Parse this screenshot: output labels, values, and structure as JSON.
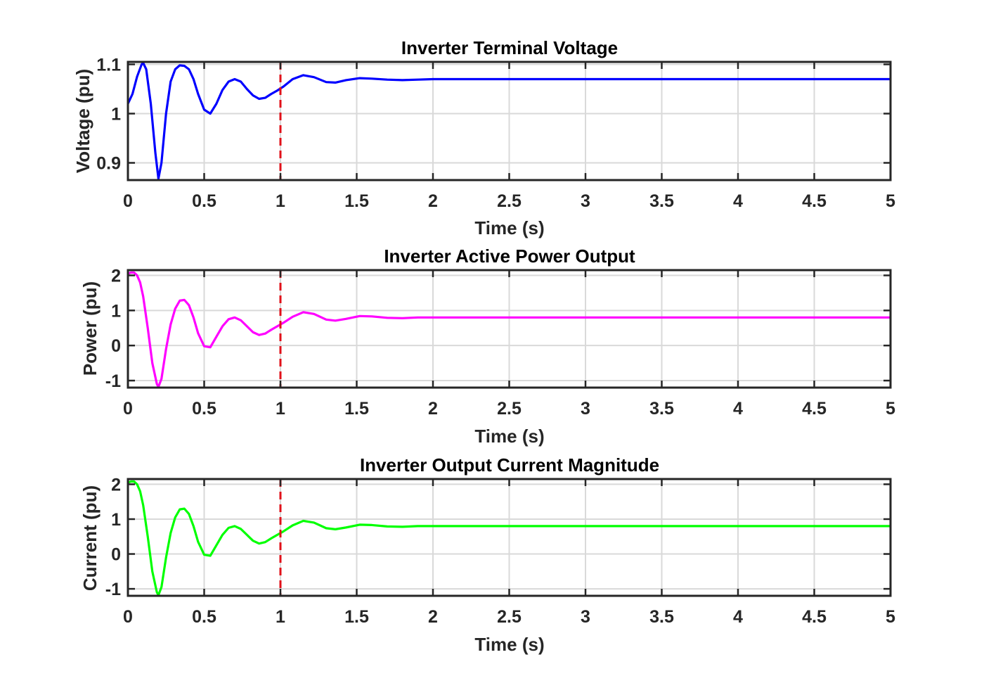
{
  "chart_data": [
    {
      "type": "line",
      "title": "Inverter Terminal Voltage",
      "xlabel": "Time (s)",
      "ylabel": "Voltage (pu)",
      "xlim": [
        0,
        5
      ],
      "ylim": [
        0.865,
        1.105
      ],
      "xticks": [
        0,
        0.5,
        1,
        1.5,
        2,
        2.5,
        3,
        3.5,
        4,
        4.5,
        5
      ],
      "xtick_labels": [
        "0",
        "0.5",
        "1",
        "1.5",
        "2",
        "2.5",
        "3",
        "3.5",
        "4",
        "4.5",
        "5"
      ],
      "yticks": [
        0.9,
        1.0,
        1.1
      ],
      "ytick_labels": [
        "0.9",
        "1",
        "1.1"
      ],
      "grid": true,
      "event_line": {
        "x": 1,
        "color": "#e0101a",
        "style": "dashed"
      },
      "series": [
        {
          "color": "#0000ff",
          "x": [
            0,
            0.03,
            0.06,
            0.09,
            0.1,
            0.12,
            0.15,
            0.18,
            0.2,
            0.22,
            0.25,
            0.28,
            0.31,
            0.34,
            0.37,
            0.4,
            0.43,
            0.46,
            0.5,
            0.54,
            0.58,
            0.62,
            0.66,
            0.7,
            0.74,
            0.78,
            0.82,
            0.86,
            0.9,
            0.94,
            0.98,
            1.02,
            1.08,
            1.15,
            1.22,
            1.3,
            1.36,
            1.43,
            1.52,
            1.6,
            1.7,
            1.8,
            1.9,
            2.0,
            2.2,
            2.5,
            3.0,
            3.5,
            4.0,
            4.5,
            5.0
          ],
          "y": [
            1.02,
            1.04,
            1.075,
            1.1,
            1.103,
            1.09,
            1.02,
            0.92,
            0.868,
            0.9,
            1.0,
            1.065,
            1.09,
            1.098,
            1.097,
            1.09,
            1.07,
            1.04,
            1.008,
            1.0,
            1.02,
            1.048,
            1.065,
            1.07,
            1.065,
            1.05,
            1.037,
            1.03,
            1.032,
            1.04,
            1.047,
            1.055,
            1.07,
            1.078,
            1.074,
            1.064,
            1.063,
            1.068,
            1.072,
            1.071,
            1.069,
            1.068,
            1.069,
            1.07,
            1.07,
            1.07,
            1.07,
            1.07,
            1.07,
            1.07,
            1.07
          ]
        }
      ]
    },
    {
      "type": "line",
      "title": "Inverter Active Power Output",
      "xlabel": "Time (s)",
      "ylabel": "Power (pu)",
      "xlim": [
        0,
        5
      ],
      "ylim": [
        -1.2,
        2.15
      ],
      "xticks": [
        0,
        0.5,
        1,
        1.5,
        2,
        2.5,
        3,
        3.5,
        4,
        4.5,
        5
      ],
      "xtick_labels": [
        "0",
        "0.5",
        "1",
        "1.5",
        "2",
        "2.5",
        "3",
        "3.5",
        "4",
        "4.5",
        "5"
      ],
      "yticks": [
        -1,
        0,
        1,
        2
      ],
      "ytick_labels": [
        "-1",
        "0",
        "1",
        "2"
      ],
      "grid": true,
      "event_line": {
        "x": 1,
        "color": "#e0101a",
        "style": "dashed"
      },
      "series": [
        {
          "color": "#ff00ff",
          "x": [
            0,
            0.02,
            0.04,
            0.06,
            0.08,
            0.1,
            0.13,
            0.16,
            0.19,
            0.2,
            0.22,
            0.25,
            0.28,
            0.31,
            0.34,
            0.37,
            0.4,
            0.43,
            0.46,
            0.5,
            0.54,
            0.58,
            0.62,
            0.66,
            0.7,
            0.74,
            0.78,
            0.82,
            0.86,
            0.9,
            0.94,
            0.98,
            1.02,
            1.08,
            1.15,
            1.22,
            1.3,
            1.36,
            1.43,
            1.52,
            1.6,
            1.7,
            1.8,
            1.9,
            2.0,
            2.2,
            2.5,
            3.0,
            3.5,
            4.0,
            4.5,
            5.0
          ],
          "y": [
            2.05,
            2.08,
            2.08,
            2.0,
            1.8,
            1.4,
            0.5,
            -0.5,
            -1.1,
            -1.18,
            -0.95,
            -0.1,
            0.6,
            1.05,
            1.28,
            1.3,
            1.15,
            0.8,
            0.35,
            -0.02,
            -0.05,
            0.25,
            0.55,
            0.75,
            0.8,
            0.72,
            0.55,
            0.38,
            0.3,
            0.34,
            0.45,
            0.55,
            0.65,
            0.82,
            0.95,
            0.9,
            0.74,
            0.71,
            0.76,
            0.84,
            0.83,
            0.79,
            0.78,
            0.8,
            0.8,
            0.8,
            0.8,
            0.8,
            0.8,
            0.8,
            0.8,
            0.8
          ]
        }
      ]
    },
    {
      "type": "line",
      "title": "Inverter Output Current Magnitude",
      "xlabel": "Time (s)",
      "ylabel": "Current (pu)",
      "xlim": [
        0,
        5
      ],
      "ylim": [
        -1.2,
        2.15
      ],
      "xticks": [
        0,
        0.5,
        1,
        1.5,
        2,
        2.5,
        3,
        3.5,
        4,
        4.5,
        5
      ],
      "xtick_labels": [
        "0",
        "0.5",
        "1",
        "1.5",
        "2",
        "2.5",
        "3",
        "3.5",
        "4",
        "4.5",
        "5"
      ],
      "yticks": [
        -1,
        0,
        1,
        2
      ],
      "ytick_labels": [
        "-1",
        "0",
        "1",
        "2"
      ],
      "grid": true,
      "event_line": {
        "x": 1,
        "color": "#e0101a",
        "style": "dashed"
      },
      "series": [
        {
          "color": "#00ff00",
          "x": [
            0,
            0.02,
            0.04,
            0.06,
            0.08,
            0.1,
            0.13,
            0.16,
            0.19,
            0.2,
            0.22,
            0.25,
            0.28,
            0.31,
            0.34,
            0.37,
            0.4,
            0.43,
            0.46,
            0.5,
            0.54,
            0.58,
            0.62,
            0.66,
            0.7,
            0.74,
            0.78,
            0.82,
            0.86,
            0.9,
            0.94,
            0.98,
            1.02,
            1.08,
            1.15,
            1.22,
            1.3,
            1.36,
            1.43,
            1.52,
            1.6,
            1.7,
            1.8,
            1.9,
            2.0,
            2.2,
            2.5,
            3.0,
            3.5,
            4.0,
            4.5,
            5.0
          ],
          "y": [
            2.05,
            2.08,
            2.08,
            2.0,
            1.8,
            1.4,
            0.5,
            -0.5,
            -1.1,
            -1.18,
            -0.95,
            -0.1,
            0.6,
            1.05,
            1.28,
            1.3,
            1.15,
            0.8,
            0.35,
            -0.02,
            -0.05,
            0.25,
            0.55,
            0.75,
            0.8,
            0.72,
            0.55,
            0.38,
            0.3,
            0.34,
            0.45,
            0.55,
            0.65,
            0.82,
            0.95,
            0.9,
            0.74,
            0.71,
            0.76,
            0.84,
            0.83,
            0.79,
            0.78,
            0.8,
            0.8,
            0.8,
            0.8,
            0.8,
            0.8,
            0.8,
            0.8,
            0.8
          ]
        }
      ]
    }
  ]
}
